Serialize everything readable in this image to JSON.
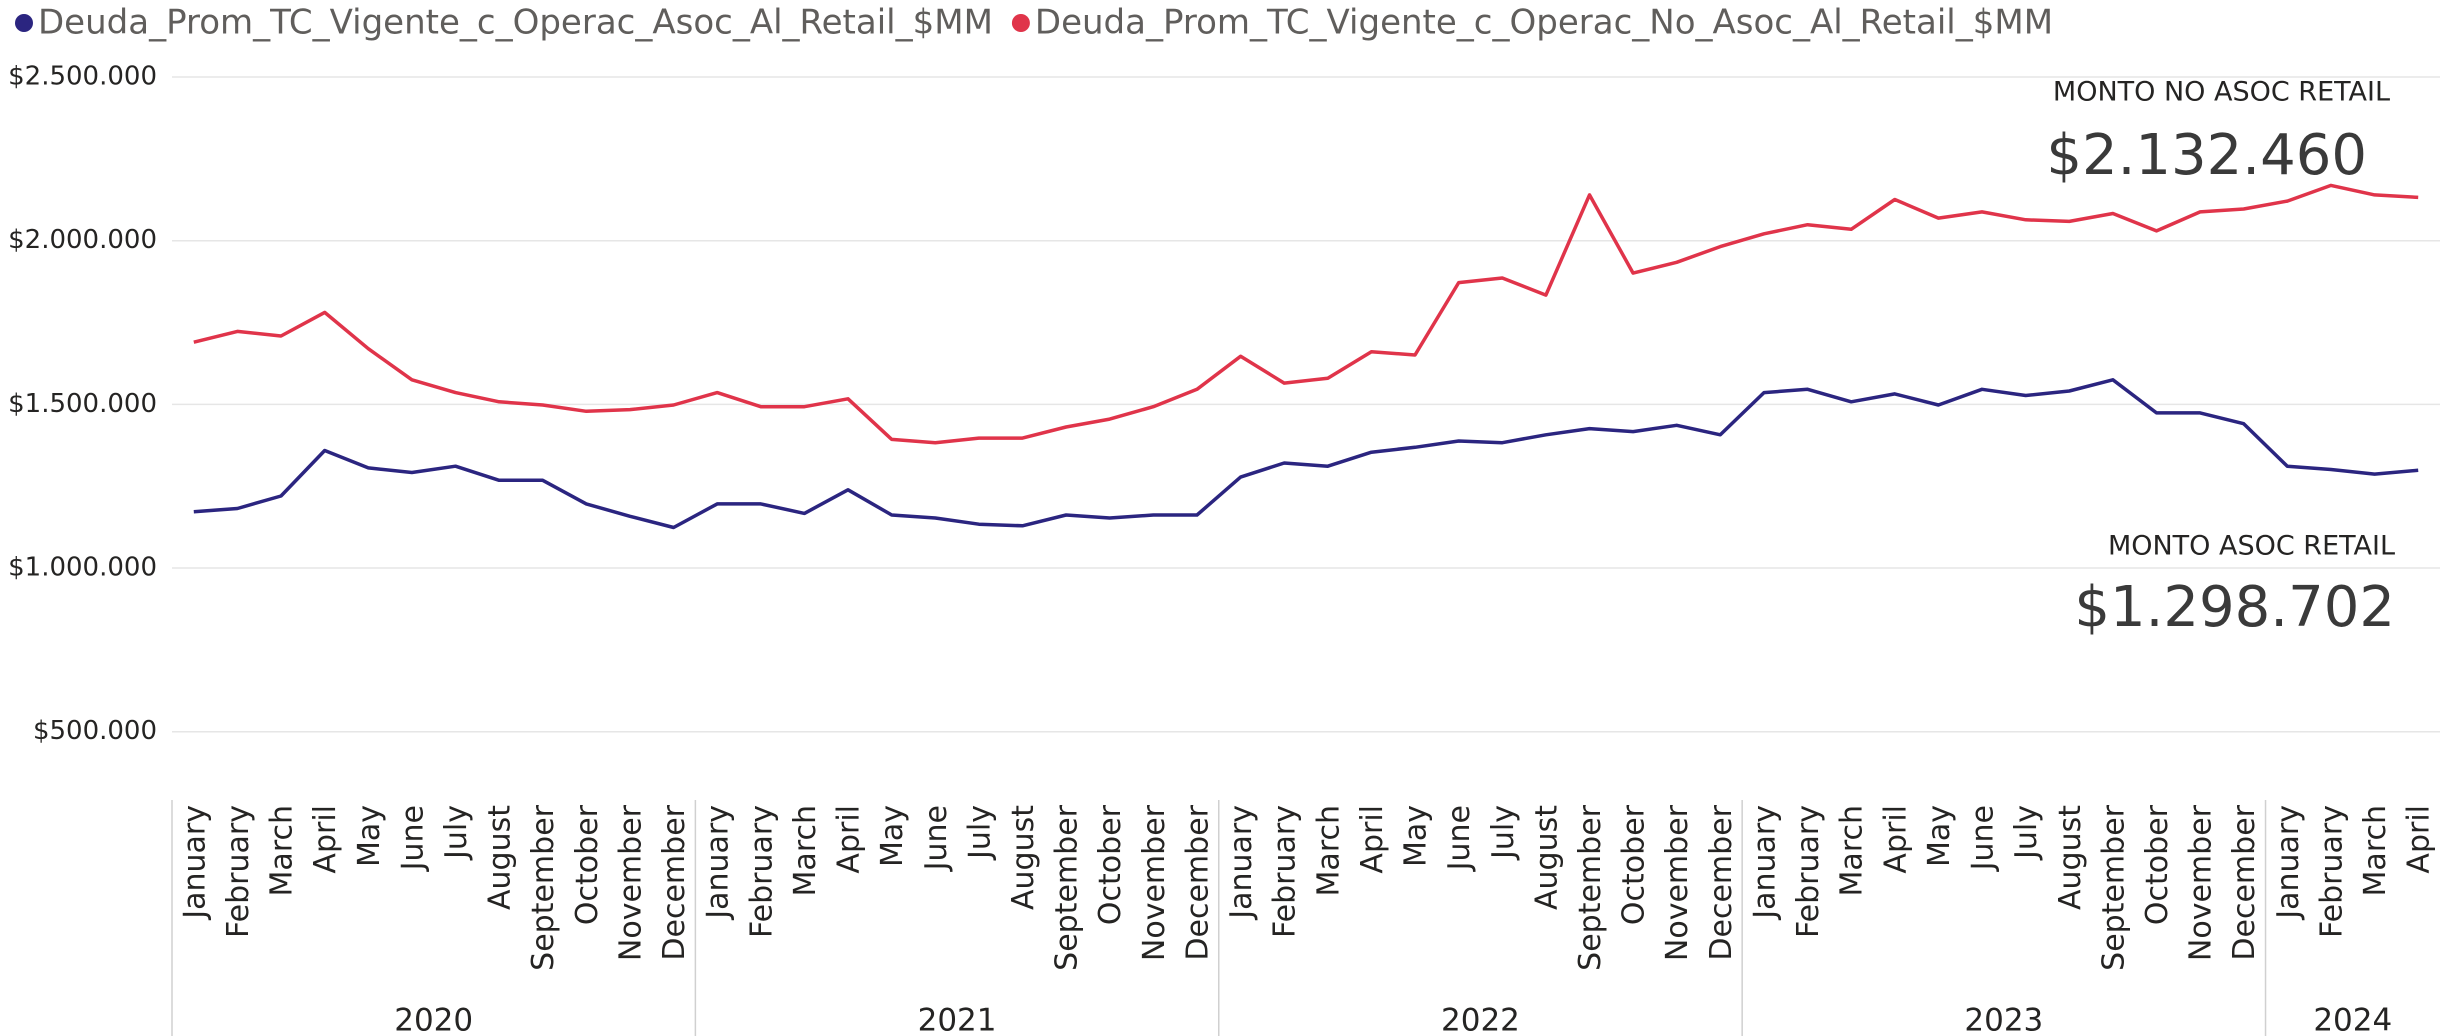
{
  "chart_data": {
    "type": "line",
    "categories": [
      "January",
      "February",
      "March",
      "April",
      "May",
      "June",
      "July",
      "August",
      "September",
      "October",
      "November",
      "December",
      "January",
      "February",
      "March",
      "April",
      "May",
      "June",
      "July",
      "August",
      "September",
      "October",
      "November",
      "December",
      "January",
      "February",
      "March",
      "April",
      "May",
      "June",
      "July",
      "August",
      "September",
      "October",
      "November",
      "December",
      "January",
      "February",
      "March",
      "April",
      "May",
      "June",
      "July",
      "August",
      "September",
      "October",
      "November",
      "December",
      "January",
      "February",
      "March",
      "April"
    ],
    "x_groups": [
      "2020",
      "2021",
      "2022",
      "2023",
      "2024"
    ],
    "series": [
      {
        "name": "Deuda_Prom_TC_Vigente_c_Operac_Asoc_Al_Retail_$MM",
        "color": "#2b2580",
        "values": [
          1172000,
          1182000,
          1220000,
          1359000,
          1306000,
          1292000,
          1311000,
          1268000,
          1268000,
          1196000,
          1158000,
          1124000,
          1196000,
          1196000,
          1167000,
          1239000,
          1162000,
          1153000,
          1134000,
          1129000,
          1162000,
          1153000,
          1162000,
          1162000,
          1278000,
          1321000,
          1311000,
          1354000,
          1369000,
          1388000,
          1383000,
          1407000,
          1426000,
          1417000,
          1436000,
          1407000,
          1536000,
          1546000,
          1508000,
          1532000,
          1498000,
          1546000,
          1527000,
          1541000,
          1575000,
          1474000,
          1474000,
          1441000,
          1311000,
          1301000,
          1287000,
          1298702
        ]
      },
      {
        "name": "Deuda_Prom_TC_Vigente_c_Operac_No_Asoc_Al_Retail_$MM",
        "color": "#e0344a",
        "values": [
          1690000,
          1723000,
          1709000,
          1781000,
          1670000,
          1575000,
          1536000,
          1508000,
          1498000,
          1479000,
          1484000,
          1498000,
          1536000,
          1493000,
          1493000,
          1517000,
          1393000,
          1383000,
          1397000,
          1397000,
          1431000,
          1455000,
          1493000,
          1546000,
          1647000,
          1565000,
          1580000,
          1661000,
          1651000,
          1872000,
          1886000,
          1834000,
          2140000,
          1901000,
          1934000,
          1982000,
          2021000,
          2049000,
          2035000,
          2126000,
          2069000,
          2088000,
          2064000,
          2059000,
          2083000,
          2030000,
          2088000,
          2097000,
          2121000,
          2169000,
          2140000,
          2132460
        ]
      }
    ],
    "ylim": [
      380000,
      2520000
    ],
    "yticks": [
      {
        "value": 500000,
        "label": "$500.000"
      },
      {
        "value": 1000000,
        "label": "$1.000.000"
      },
      {
        "value": 1500000,
        "label": "$1.500.000"
      },
      {
        "value": 2000000,
        "label": "$2.000.000"
      },
      {
        "value": 2500000,
        "label": "$2.500.000"
      }
    ],
    "grid": true,
    "annotations": [
      {
        "label": "MONTO NO ASOC RETAIL",
        "text": "$2.132.460"
      },
      {
        "label": "MONTO ASOC RETAIL",
        "text": "$1.298.702"
      }
    ]
  }
}
